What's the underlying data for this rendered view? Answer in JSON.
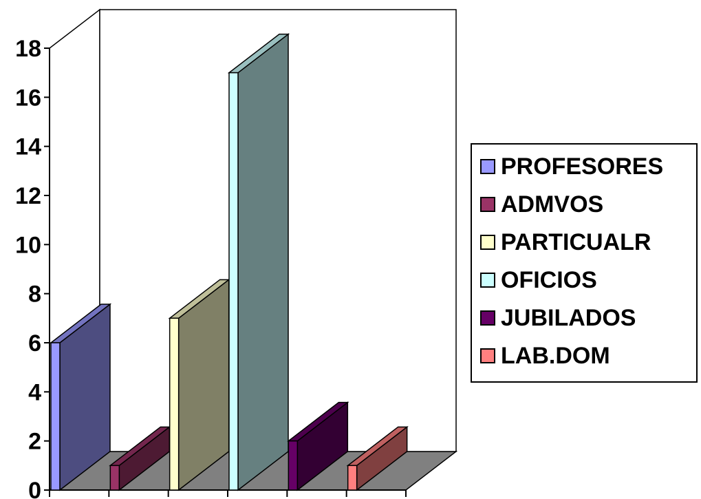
{
  "chart_data": {
    "type": "bar",
    "variant": "3d-column",
    "categories": [
      "PROFESORES",
      "ADMVOS",
      "PARTICUALR",
      "OFICIOS",
      "JUBILADOS",
      "LAB.DOM"
    ],
    "values": [
      6,
      1,
      7,
      17,
      2,
      1
    ],
    "colors": [
      "#9999ff",
      "#993366",
      "#ffffcc",
      "#ccffff",
      "#660066",
      "#ff8080"
    ],
    "yticks": [
      "0",
      "2",
      "4",
      "6",
      "8",
      "10",
      "12",
      "14",
      "16",
      "18"
    ],
    "ylim": [
      0,
      18
    ],
    "title": "",
    "xlabel": "",
    "ylabel": "",
    "legend": {
      "position": "right",
      "entries": [
        "PROFESORES",
        "ADMVOS",
        "PARTICUALR",
        "OFICIOS",
        "JUBILADOS",
        "LAB.DOM"
      ]
    },
    "grid": false
  }
}
